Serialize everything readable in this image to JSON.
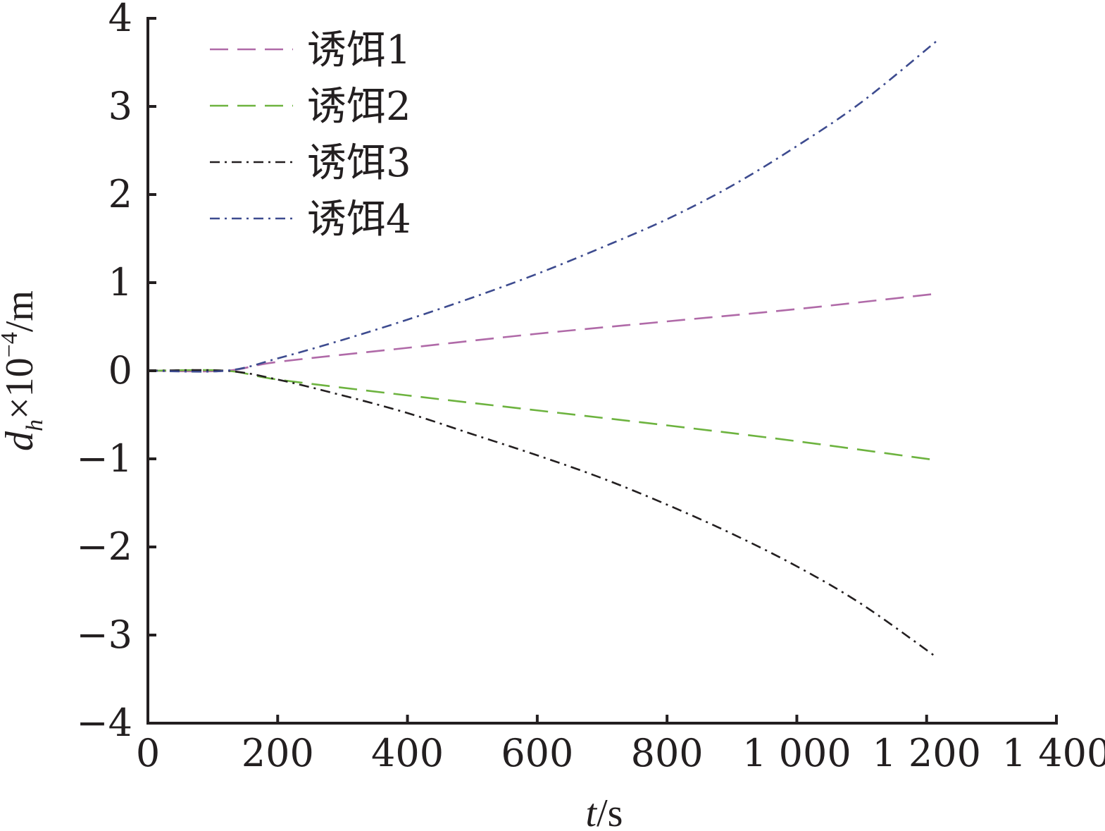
{
  "chart_data": {
    "type": "line",
    "xlabel_var": "t",
    "xlabel_unit": "/s",
    "ylabel_var": "d",
    "ylabel_sub": "h",
    "ylabel_rest": "×10",
    "ylabel_exp": "−4",
    "ylabel_unit": "/m",
    "xlim": [
      0,
      1400
    ],
    "ylim": [
      -4,
      4
    ],
    "x_ticks": [
      0,
      200,
      400,
      600,
      800,
      1000,
      1200,
      1400
    ],
    "x_tick_labels": [
      "0",
      "200",
      "400",
      "600",
      "800",
      "1 000",
      "1 200",
      "1 400"
    ],
    "y_ticks": [
      -4,
      -3,
      -2,
      -1,
      0,
      1,
      2,
      3,
      4
    ],
    "y_tick_labels": [
      "−4",
      "−3",
      "−2",
      "−1",
      "0",
      "1",
      "2",
      "3",
      "4"
    ],
    "grid": false,
    "legend_position": "top-left",
    "series": [
      {
        "name": "诱饵1",
        "color": "#b06aa8",
        "dash": "long-dash",
        "x": [
          0,
          120,
          200,
          400,
          600,
          800,
          1000,
          1210
        ],
        "y": [
          0,
          0,
          0.1,
          0.26,
          0.42,
          0.56,
          0.7,
          0.87
        ]
      },
      {
        "name": "诱饵2",
        "color": "#6db33f",
        "dash": "long-dash",
        "x": [
          0,
          120,
          200,
          400,
          600,
          800,
          1000,
          1210
        ],
        "y": [
          0,
          0,
          -0.1,
          -0.28,
          -0.45,
          -0.62,
          -0.8,
          -1.01
        ]
      },
      {
        "name": "诱饵3",
        "color": "#231f20",
        "dash": "dash-dot",
        "x": [
          0,
          120,
          200,
          300,
          400,
          500,
          600,
          700,
          800,
          900,
          1000,
          1100,
          1215
        ],
        "y": [
          0,
          0,
          -0.1,
          -0.28,
          -0.48,
          -0.72,
          -0.96,
          -1.22,
          -1.52,
          -1.85,
          -2.22,
          -2.65,
          -3.25
        ]
      },
      {
        "name": "诱饵4",
        "color": "#3d4b8f",
        "dash": "dash-dot",
        "x": [
          0,
          120,
          200,
          300,
          400,
          500,
          600,
          700,
          800,
          900,
          1000,
          1100,
          1220
        ],
        "y": [
          0,
          0,
          0.14,
          0.35,
          0.58,
          0.83,
          1.1,
          1.4,
          1.72,
          2.1,
          2.55,
          3.05,
          3.77
        ]
      }
    ]
  }
}
